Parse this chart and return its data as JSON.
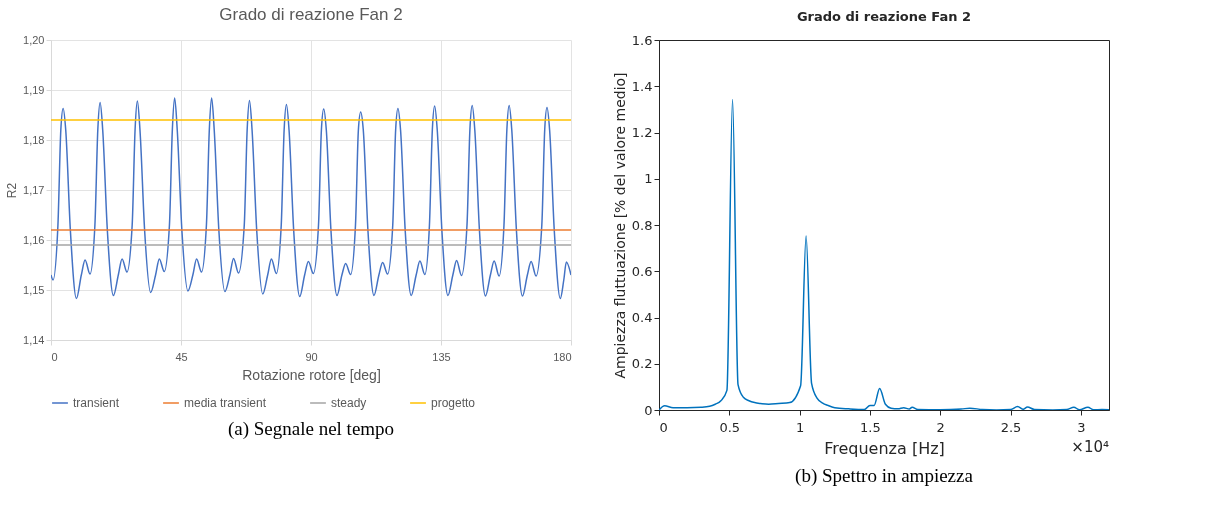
{
  "chart_data": [
    {
      "type": "line",
      "title": "Grado di reazione Fan 2",
      "xlabel": "Rotazione rotore [deg]",
      "ylabel": "R2",
      "xlim": [
        0,
        180
      ],
      "xticks": [
        0,
        45,
        90,
        135,
        180
      ],
      "ylim": [
        1.14,
        1.2
      ],
      "yticks": [
        {
          "value": 1.14,
          "label": "1,14"
        },
        {
          "value": 1.15,
          "label": "1,15"
        },
        {
          "value": 1.16,
          "label": "1,16"
        },
        {
          "value": 1.17,
          "label": "1,17"
        },
        {
          "value": 1.18,
          "label": "1,18"
        },
        {
          "value": 1.19,
          "label": "1,19"
        },
        {
          "value": 1.2,
          "label": "1,20"
        }
      ],
      "grid": true,
      "legend": "bottom",
      "line_style": "solid",
      "marker": "none",
      "series": [
        {
          "name": "transient",
          "color": "#4472c4",
          "type": "line",
          "x": [
            0,
            0.7,
            2.4,
            3.4,
            4.2,
            5.1,
            6.7,
            8.8,
            10.5,
            11.8,
            13.5,
            15.2,
            16.2,
            17.0,
            17.9,
            19.5,
            21.6,
            23.3,
            24.6,
            26.3,
            28.1,
            29.1,
            29.9,
            30.8,
            32.4,
            34.5,
            36.2,
            37.5,
            39.2,
            41.0,
            42.0,
            42.8,
            43.7,
            45.3,
            47.4,
            49.1,
            50.4,
            52.1,
            53.8,
            54.8,
            55.6,
            56.5,
            58.1,
            60.2,
            61.9,
            63.2,
            64.9,
            66.9,
            67.9,
            68.7,
            69.6,
            71.2,
            73.3,
            75.0,
            76.3,
            78.0,
            79.7,
            80.7,
            81.5,
            82.4,
            84.0,
            86.1,
            87.8,
            89.1,
            90.8,
            92.6,
            93.6,
            94.4,
            95.3,
            96.9,
            99.0,
            100.7,
            102.0,
            103.7,
            105.4,
            106.4,
            107.2,
            108.1,
            109.7,
            111.8,
            113.5,
            114.8,
            116.5,
            118.3,
            119.3,
            120.1,
            121.0,
            122.6,
            124.7,
            126.4,
            127.7,
            129.4,
            131.0,
            132.0,
            132.8,
            133.7,
            135.3,
            137.4,
            139.1,
            140.4,
            142.1,
            144.0,
            145.0,
            145.8,
            146.7,
            148.3,
            150.4,
            152.1,
            153.4,
            155.1,
            156.8,
            157.8,
            158.6,
            159.5,
            161.1,
            163.2,
            164.9,
            166.2,
            167.9,
            169.9,
            170.9,
            171.7,
            172.6,
            174.2,
            176.3,
            177.5,
            178.4,
            180
          ],
          "values": [
            1.153,
            1.152,
            1.163,
            1.182,
            1.1863,
            1.182,
            1.162,
            1.1483,
            1.153,
            1.156,
            1.1532,
            1.163,
            1.182,
            1.1875,
            1.182,
            1.162,
            1.1489,
            1.153,
            1.1562,
            1.1536,
            1.163,
            1.182,
            1.1878,
            1.182,
            1.162,
            1.1495,
            1.153,
            1.1562,
            1.1537,
            1.163,
            1.182,
            1.1884,
            1.182,
            1.162,
            1.1498,
            1.153,
            1.1562,
            1.1536,
            1.163,
            1.182,
            1.1884,
            1.182,
            1.162,
            1.1497,
            1.153,
            1.1563,
            1.1534,
            1.163,
            1.182,
            1.1879,
            1.182,
            1.162,
            1.1492,
            1.153,
            1.1562,
            1.1533,
            1.163,
            1.182,
            1.1871,
            1.182,
            1.162,
            1.1487,
            1.153,
            1.1557,
            1.1533,
            1.163,
            1.182,
            1.1862,
            1.182,
            1.162,
            1.1489,
            1.153,
            1.1553,
            1.1531,
            1.163,
            1.182,
            1.1856,
            1.182,
            1.162,
            1.1489,
            1.153,
            1.1555,
            1.1532,
            1.163,
            1.182,
            1.1863,
            1.182,
            1.162,
            1.1489,
            1.153,
            1.1558,
            1.1531,
            1.163,
            1.182,
            1.1868,
            1.182,
            1.162,
            1.1489,
            1.153,
            1.1559,
            1.1529,
            1.163,
            1.182,
            1.1869,
            1.182,
            1.162,
            1.1488,
            1.153,
            1.1558,
            1.1528,
            1.163,
            1.182,
            1.1869,
            1.182,
            1.162,
            1.1488,
            1.153,
            1.1557,
            1.1528,
            1.163,
            1.182,
            1.1865,
            1.182,
            1.162,
            1.1483,
            1.152,
            1.1556,
            1.153
          ]
        },
        {
          "name": "media transient",
          "color": "#ed7d31",
          "type": "line",
          "x": [
            0,
            180
          ],
          "values": [
            1.162,
            1.162
          ]
        },
        {
          "name": "steady",
          "color": "#a5a5a5",
          "type": "line",
          "x": [
            0,
            180
          ],
          "values": [
            1.159,
            1.159
          ]
        },
        {
          "name": "progetto",
          "color": "#ffc000",
          "type": "line",
          "x": [
            0,
            180
          ],
          "values": [
            1.184,
            1.184
          ]
        }
      ],
      "annotations": [
        "(a) Segnale nel tempo"
      ]
    },
    {
      "type": "line",
      "title": "Grado di reazione Fan 2",
      "xlabel": "Frequenza [Hz]",
      "ylabel": "Ampiezza fluttuazione [% del valore medio]",
      "xlim": [
        0,
        3.2
      ],
      "xticks": [
        0,
        0.5,
        1,
        1.5,
        2,
        2.5,
        3
      ],
      "ylim": [
        0,
        1.6
      ],
      "yticks": [
        0,
        0.2,
        0.4,
        0.6,
        0.8,
        1,
        1.2,
        1.4,
        1.6
      ],
      "grid": false,
      "legend": false,
      "line_style": "solid",
      "marker": "none",
      "series": [
        {
          "color": "#0072bd",
          "type": "line",
          "x": [
            0,
            0.04,
            0.1,
            0.2,
            0.3,
            0.36,
            0.4,
            0.44,
            0.483,
            0.523,
            0.562,
            0.6,
            0.64,
            0.68,
            0.72,
            0.78,
            0.85,
            0.93,
            1.007,
            1.046,
            1.085,
            1.125,
            1.164,
            1.2,
            1.25,
            1.35,
            1.46,
            1.5,
            1.53,
            1.569,
            1.61,
            1.65,
            1.7,
            1.74,
            1.78,
            1.8,
            1.84,
            2.0,
            2.15,
            2.21,
            2.3,
            2.4,
            2.5,
            2.55,
            2.59,
            2.62,
            2.67,
            2.8,
            2.9,
            2.95,
            2.99,
            3.05,
            3.09,
            3.15,
            3.2
          ],
          "values": [
            0,
            0.018,
            0.01,
            0.01,
            0.012,
            0.016,
            0.025,
            0.04,
            0.085,
            1.343,
            0.11,
            0.055,
            0.04,
            0.032,
            0.028,
            0.025,
            0.028,
            0.032,
            0.105,
            0.752,
            0.115,
            0.05,
            0.03,
            0.02,
            0.01,
            0.005,
            0.002,
            0.02,
            0.02,
            0.093,
            0.025,
            0.008,
            0.005,
            0.01,
            0.004,
            0.012,
            0.002,
            0.001,
            0.004,
            0.008,
            0.002,
            0,
            0.002,
            0.015,
            0.003,
            0.013,
            0.002,
            0,
            0.002,
            0.012,
            0.001,
            0.012,
            0.001,
            0.002,
            0.001
          ]
        }
      ],
      "annotations": [
        "×10⁴",
        "(b) Spettro in ampiezza"
      ]
    }
  ]
}
